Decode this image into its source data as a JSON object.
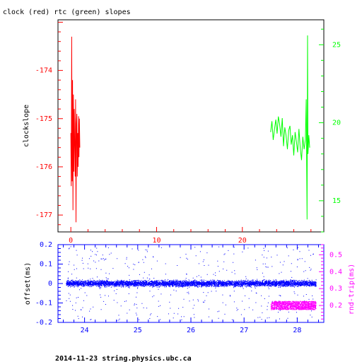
{
  "title": "clock (red) rtc (green) slopes",
  "footer": "2014-11-23 string.physics.ubc.ca",
  "colors": {
    "clock": "#ff0000",
    "rtc": "#00ff00",
    "offset": "#0000ff",
    "rndtrip": "#ff00ff",
    "frame": "#000000"
  },
  "chart_data": [
    {
      "type": "line",
      "title": "clock (red) rtc (green) slopes",
      "xlim": [
        -1.5,
        29.5
      ],
      "x_ticks": [
        0,
        10,
        20
      ],
      "y_left": {
        "label": "clockslope",
        "lim": [
          -177.35,
          -172.95
        ],
        "ticks": [
          -177,
          -176,
          -175,
          -174
        ]
      },
      "y_right": {
        "label": "",
        "lim": [
          13.0,
          26.6
        ],
        "ticks": [
          15,
          20,
          25
        ]
      },
      "series": [
        {
          "name": "clock",
          "axis": "left",
          "x": [
            0.0,
            0.05,
            0.1,
            0.15,
            0.2,
            0.25,
            0.3,
            0.35,
            0.4,
            0.45,
            0.5,
            0.55,
            0.6,
            0.65,
            0.7,
            0.75,
            0.8,
            0.85,
            0.9,
            0.95,
            1.0,
            1.05
          ],
          "y": [
            -175.3,
            -176.4,
            -173.3,
            -176.3,
            -174.2,
            -176.9,
            -174.5,
            -176.1,
            -174.8,
            -175.6,
            -176.2,
            -174.6,
            -177.15,
            -175.1,
            -174.9,
            -176.2,
            -175.3,
            -176.0,
            -174.95,
            -175.8,
            -175.0,
            -175.6
          ]
        },
        {
          "name": "rtc",
          "axis": "right",
          "x": [
            23.3,
            23.45,
            23.6,
            23.75,
            23.9,
            24.05,
            24.2,
            24.35,
            24.5,
            24.65,
            24.8,
            24.95,
            25.1,
            25.25,
            25.4,
            25.55,
            25.7,
            25.85,
            26.0,
            26.15,
            26.3,
            26.45,
            26.6,
            26.75,
            26.9,
            27.05,
            27.2,
            27.35,
            27.45,
            27.55,
            27.6,
            27.65,
            27.75,
            27.85
          ],
          "y": [
            19.4,
            20.1,
            18.9,
            19.6,
            20.2,
            19.3,
            20.4,
            19.9,
            19.1,
            20.3,
            18.5,
            19.7,
            19.2,
            18.3,
            19.5,
            19.8,
            18.6,
            19.2,
            17.9,
            19.4,
            18.8,
            18.1,
            19.6,
            18.4,
            17.6,
            19.1,
            18.3,
            18.9,
            21.5,
            13.8,
            25.6,
            18.0,
            19.2,
            18.4
          ]
        }
      ]
    },
    {
      "type": "scatter",
      "xlim": [
        23.5,
        28.5
      ],
      "x_ticks": [
        24,
        25,
        26,
        27,
        28
      ],
      "y_left": {
        "label": "offset(ms)",
        "lim": [
          -0.2,
          0.2
        ],
        "ticks": [
          -0.2,
          -0.1,
          0,
          0.1,
          0.2
        ]
      },
      "y_right": {
        "label": "rnd-trip(ms)",
        "lim": [
          0.1,
          0.56
        ],
        "ticks": [
          0.2,
          0.3,
          0.4,
          0.5
        ]
      },
      "series": [
        {
          "name": "offset",
          "axis": "left",
          "x_range": [
            23.65,
            28.35
          ],
          "center": 0.0,
          "spread": 0.022,
          "outlier_range": [
            -0.19,
            0.19
          ]
        },
        {
          "name": "rnd-trip",
          "axis": "right",
          "x_range": [
            27.5,
            28.35
          ],
          "center": 0.2,
          "spread": 0.05
        }
      ]
    }
  ]
}
